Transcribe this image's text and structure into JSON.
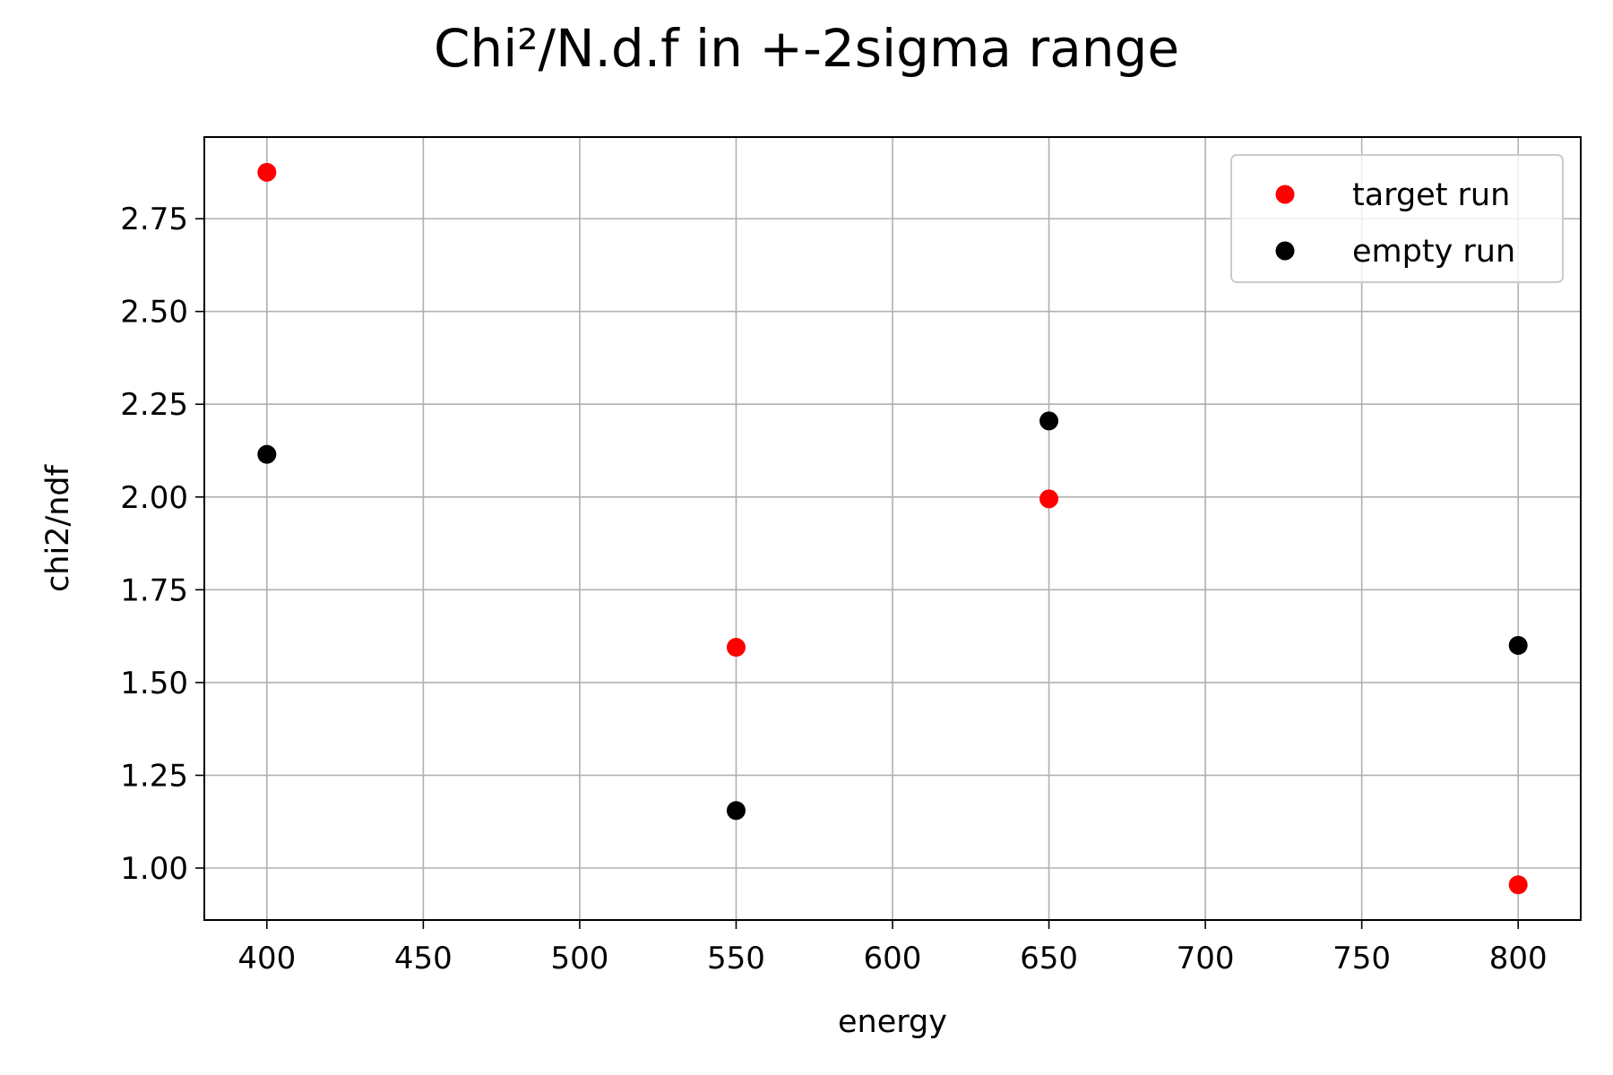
{
  "chart_data": {
    "type": "scatter",
    "title": "Chi²/N.d.f in +-2sigma range",
    "xlabel": "energy",
    "ylabel": "chi2/ndf",
    "xlim": [
      380,
      820
    ],
    "ylim": [
      0.86,
      2.97
    ],
    "xticks": [
      400,
      450,
      500,
      550,
      600,
      650,
      700,
      750,
      800
    ],
    "yticks": [
      1.0,
      1.25,
      1.5,
      1.75,
      2.0,
      2.25,
      2.5,
      2.75
    ],
    "grid": true,
    "legend_position": "top-right",
    "series": [
      {
        "name": "target run",
        "color": "#ff0000",
        "x": [
          400,
          550,
          650,
          800
        ],
        "y": [
          2.875,
          1.595,
          1.995,
          0.955
        ]
      },
      {
        "name": "empty run",
        "color": "#000000",
        "x": [
          400,
          550,
          650,
          800
        ],
        "y": [
          2.115,
          1.155,
          2.205,
          1.6
        ]
      }
    ]
  }
}
